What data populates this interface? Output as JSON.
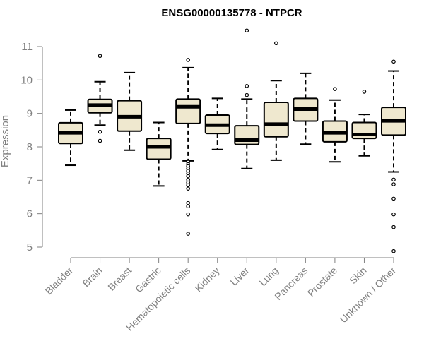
{
  "chart_data": {
    "type": "boxplot",
    "title": "ENSG00000135778 - NTPCR",
    "ylabel": "Expression",
    "xlabel": "",
    "ylim": [
      4.8,
      11.5
    ],
    "yticks": [
      5,
      6,
      7,
      8,
      9,
      10,
      11
    ],
    "box_fill": "#efe8cf",
    "categories": [
      "Bladder",
      "Brain",
      "Breast",
      "Gastric",
      "Hematopoietic cells",
      "Kidney",
      "Liver",
      "Lung",
      "Pancreas",
      "Prostate",
      "Skin",
      "Unknown / Other"
    ],
    "boxes": [
      {
        "whisker_low": 7.45,
        "q1": 8.1,
        "median": 8.42,
        "q3": 8.72,
        "whisker_high": 9.1,
        "outliers": []
      },
      {
        "whisker_low": 8.65,
        "q1": 9.02,
        "median": 9.25,
        "q3": 9.42,
        "whisker_high": 9.95,
        "outliers": [
          10.72,
          8.45,
          8.18
        ]
      },
      {
        "whisker_low": 7.9,
        "q1": 8.47,
        "median": 8.9,
        "q3": 9.38,
        "whisker_high": 10.22,
        "outliers": []
      },
      {
        "whisker_low": 6.83,
        "q1": 7.63,
        "median": 8.0,
        "q3": 8.25,
        "whisker_high": 8.73,
        "outliers": []
      },
      {
        "whisker_low": 7.58,
        "q1": 8.7,
        "median": 9.2,
        "q3": 9.43,
        "whisker_high": 10.37,
        "outliers": [
          10.6,
          7.55,
          7.48,
          7.42,
          7.35,
          7.28,
          7.2,
          7.12,
          7.02,
          6.93,
          6.85,
          6.75,
          6.32,
          6.22,
          5.98,
          5.4
        ]
      },
      {
        "whisker_low": 7.92,
        "q1": 8.4,
        "median": 8.65,
        "q3": 8.95,
        "whisker_high": 9.45,
        "outliers": []
      },
      {
        "whisker_low": 7.35,
        "q1": 8.07,
        "median": 8.2,
        "q3": 8.63,
        "whisker_high": 9.43,
        "outliers": [
          11.48,
          9.82,
          9.55
        ]
      },
      {
        "whisker_low": 7.6,
        "q1": 8.3,
        "median": 8.68,
        "q3": 9.33,
        "whisker_high": 9.98,
        "outliers": [
          11.1
        ]
      },
      {
        "whisker_low": 8.08,
        "q1": 8.77,
        "median": 9.13,
        "q3": 9.45,
        "whisker_high": 10.2,
        "outliers": []
      },
      {
        "whisker_low": 7.55,
        "q1": 8.15,
        "median": 8.42,
        "q3": 8.77,
        "whisker_high": 9.4,
        "outliers": [
          9.73
        ]
      },
      {
        "whisker_low": 7.73,
        "q1": 8.25,
        "median": 8.37,
        "q3": 8.73,
        "whisker_high": 8.97,
        "outliers": [
          9.65
        ]
      },
      {
        "whisker_low": 7.25,
        "q1": 8.35,
        "median": 8.78,
        "q3": 9.18,
        "whisker_high": 10.27,
        "outliers": [
          10.55,
          7.02,
          6.88,
          6.45,
          5.98,
          5.6,
          4.88
        ]
      }
    ]
  }
}
